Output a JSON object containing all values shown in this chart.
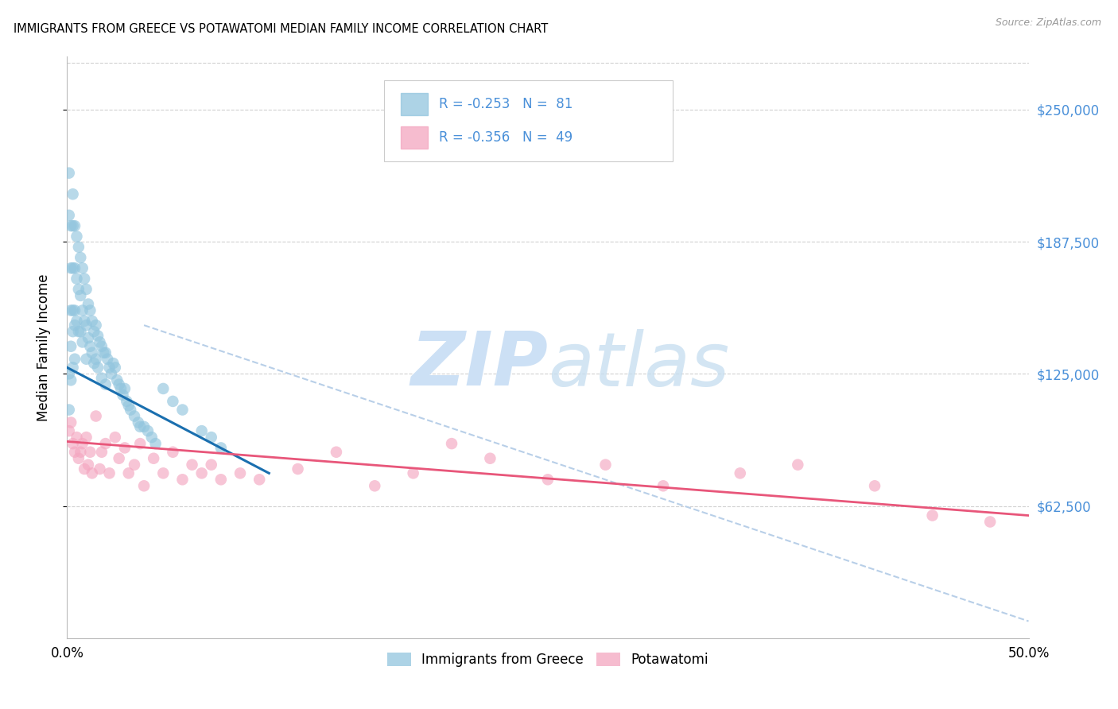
{
  "title": "IMMIGRANTS FROM GREECE VS POTAWATOMI MEDIAN FAMILY INCOME CORRELATION CHART",
  "source": "Source: ZipAtlas.com",
  "ylabel": "Median Family Income",
  "legend_label1": "Immigrants from Greece",
  "legend_label2": "Potawatomi",
  "legend_r1": "R = -0.253",
  "legend_n1": "N = 81",
  "legend_r2": "R = -0.356",
  "legend_n2": "N = 49",
  "color_blue": "#92c5de",
  "color_pink": "#f4a6c0",
  "color_blue_line": "#1a6faf",
  "color_pink_line": "#e8567a",
  "color_dashed": "#b8cfe8",
  "watermark_zip": "ZIP",
  "watermark_atlas": "atlas",
  "watermark_color": "#cce0f5",
  "xmin": 0.0,
  "xmax": 0.5,
  "ymin": 0,
  "ymax": 275000,
  "ytick_values": [
    250000,
    187500,
    125000,
    62500
  ],
  "ytick_labels": [
    "$250,000",
    "$187,500",
    "$125,000",
    "$62,500"
  ],
  "blue_scatter_x": [
    0.001,
    0.001,
    0.002,
    0.002,
    0.002,
    0.003,
    0.003,
    0.003,
    0.003,
    0.004,
    0.004,
    0.004,
    0.005,
    0.005,
    0.005,
    0.006,
    0.006,
    0.006,
    0.007,
    0.007,
    0.007,
    0.008,
    0.008,
    0.008,
    0.009,
    0.009,
    0.01,
    0.01,
    0.01,
    0.011,
    0.011,
    0.012,
    0.012,
    0.013,
    0.013,
    0.014,
    0.014,
    0.015,
    0.015,
    0.016,
    0.016,
    0.017,
    0.018,
    0.018,
    0.019,
    0.02,
    0.02,
    0.021,
    0.022,
    0.023,
    0.024,
    0.025,
    0.026,
    0.027,
    0.028,
    0.029,
    0.03,
    0.031,
    0.032,
    0.033,
    0.035,
    0.037,
    0.038,
    0.04,
    0.042,
    0.044,
    0.046,
    0.05,
    0.055,
    0.06,
    0.07,
    0.075,
    0.08,
    0.001,
    0.001,
    0.002,
    0.002,
    0.003,
    0.003,
    0.004,
    0.004
  ],
  "blue_scatter_y": [
    220000,
    200000,
    195000,
    175000,
    155000,
    210000,
    195000,
    175000,
    155000,
    195000,
    175000,
    155000,
    190000,
    170000,
    150000,
    185000,
    165000,
    145000,
    180000,
    162000,
    145000,
    175000,
    155000,
    140000,
    170000,
    150000,
    165000,
    148000,
    132000,
    158000,
    142000,
    155000,
    138000,
    150000,
    135000,
    145000,
    130000,
    148000,
    132000,
    143000,
    128000,
    140000,
    138000,
    123000,
    135000,
    135000,
    120000,
    132000,
    128000,
    125000,
    130000,
    128000,
    122000,
    120000,
    118000,
    115000,
    118000,
    112000,
    110000,
    108000,
    105000,
    102000,
    100000,
    100000,
    98000,
    95000,
    92000,
    118000,
    112000,
    108000,
    98000,
    95000,
    90000,
    125000,
    108000,
    138000,
    122000,
    145000,
    128000,
    148000,
    132000
  ],
  "pink_scatter_x": [
    0.001,
    0.002,
    0.003,
    0.004,
    0.005,
    0.006,
    0.007,
    0.008,
    0.009,
    0.01,
    0.011,
    0.012,
    0.013,
    0.015,
    0.017,
    0.018,
    0.02,
    0.022,
    0.025,
    0.027,
    0.03,
    0.032,
    0.035,
    0.038,
    0.04,
    0.045,
    0.05,
    0.055,
    0.06,
    0.065,
    0.07,
    0.075,
    0.08,
    0.09,
    0.1,
    0.12,
    0.14,
    0.16,
    0.18,
    0.2,
    0.22,
    0.25,
    0.28,
    0.31,
    0.35,
    0.38,
    0.42,
    0.45,
    0.48
  ],
  "pink_scatter_y": [
    98000,
    102000,
    92000,
    88000,
    95000,
    85000,
    88000,
    92000,
    80000,
    95000,
    82000,
    88000,
    78000,
    105000,
    80000,
    88000,
    92000,
    78000,
    95000,
    85000,
    90000,
    78000,
    82000,
    92000,
    72000,
    85000,
    78000,
    88000,
    75000,
    82000,
    78000,
    82000,
    75000,
    78000,
    75000,
    80000,
    88000,
    72000,
    78000,
    92000,
    85000,
    75000,
    82000,
    72000,
    78000,
    82000,
    72000,
    58000,
    55000
  ],
  "blue_line_x": [
    0.0,
    0.105
  ],
  "blue_line_y": [
    128000,
    78000
  ],
  "pink_line_x": [
    0.0,
    0.5
  ],
  "pink_line_y": [
    93000,
    58000
  ],
  "dash_line_x": [
    0.04,
    0.5
  ],
  "dash_line_y": [
    148000,
    8000
  ]
}
